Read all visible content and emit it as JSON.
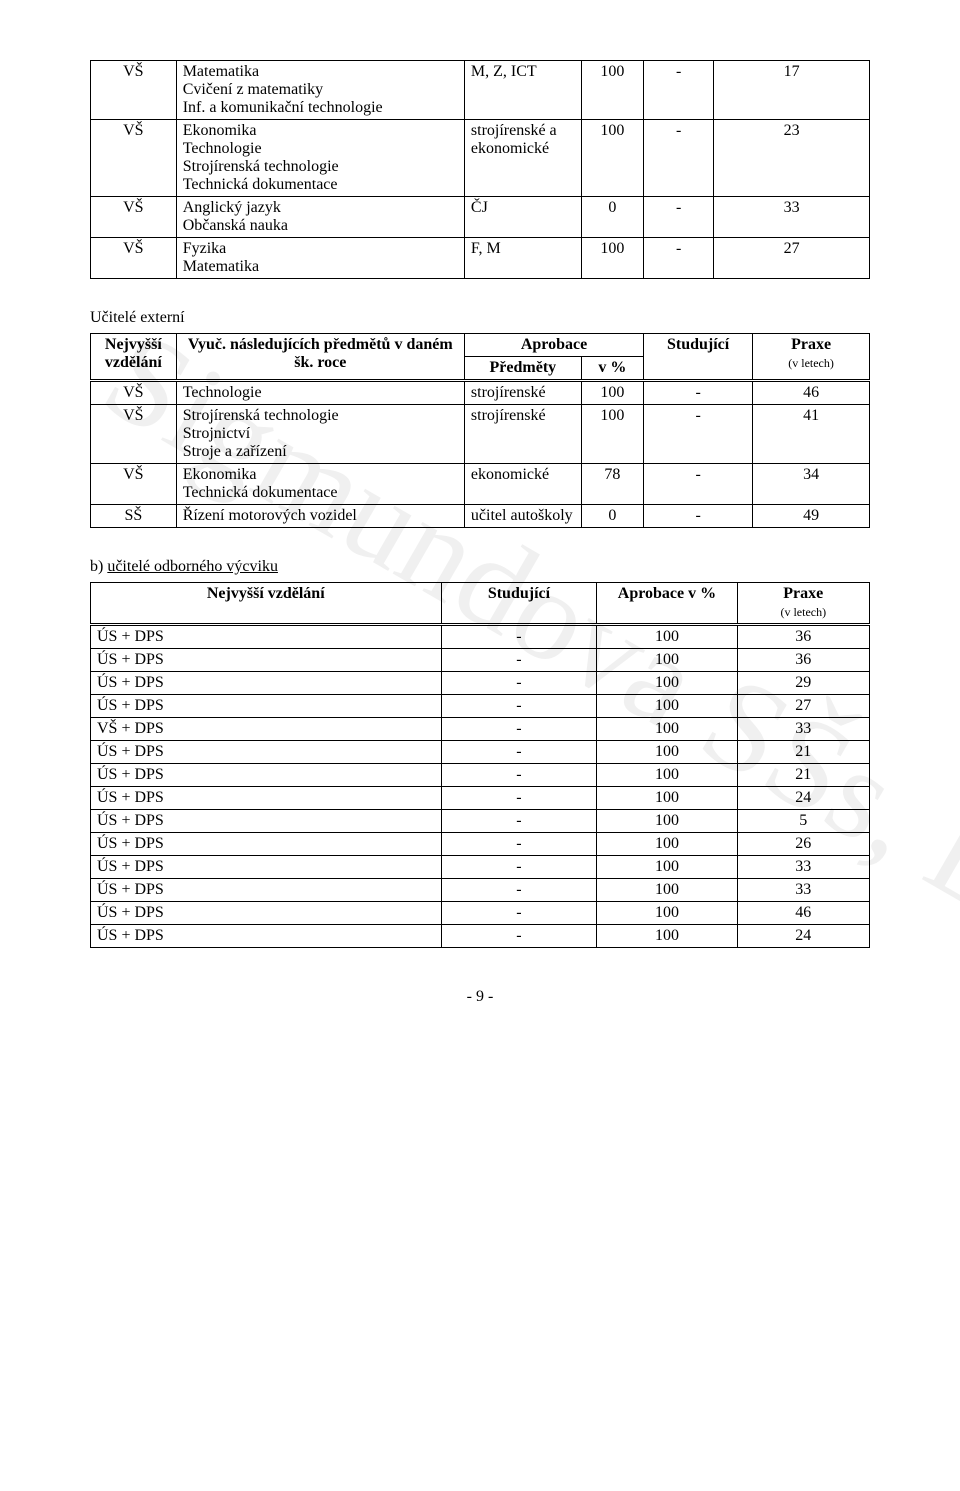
{
  "watermark": "Sigmundova SŠs, Lutín",
  "table1": {
    "rows": [
      {
        "lvl": "VŠ",
        "subj": "Matematika\nCvičení z matematiky\nInf. a komunikační technologie",
        "apr": "M, Z, ICT",
        "pct": "100",
        "stud": "-",
        "praxe": "17"
      },
      {
        "lvl": "VŠ",
        "subj": "Ekonomika\nTechnologie\nStrojírenská technologie\nTechnická dokumentace",
        "apr": "strojírenské a ekonomické",
        "pct": "100",
        "stud": "-",
        "praxe": "23"
      },
      {
        "lvl": "VŠ",
        "subj": "Anglický jazyk\nObčanská nauka",
        "apr": "ČJ",
        "pct": "0",
        "stud": "-",
        "praxe": "33"
      },
      {
        "lvl": "VŠ",
        "subj": "Fyzika\nMatematika",
        "apr": "F, M",
        "pct": "100",
        "stud": "-",
        "praxe": "27"
      }
    ]
  },
  "section_externals": "Učitelé externí",
  "table2": {
    "head": {
      "c1": "Nejvyšší vzdělání",
      "c2": "Vyuč. následujících předmětů v daném šk. roce",
      "c3a": "Aprobace",
      "c3b": "Předměty",
      "c3c": "v %",
      "c4": "Studující",
      "c5": "Praxe",
      "c5b": "(v letech)"
    },
    "rows": [
      {
        "lvl": "VŠ",
        "subj": "Technologie",
        "apr": "strojírenské",
        "pct": "100",
        "stud": "-",
        "praxe": "46"
      },
      {
        "lvl": "VŠ",
        "subj": "Strojírenská technologie\nStrojnictví\nStroje a zařízení",
        "apr": "strojírenské",
        "pct": "100",
        "stud": "-",
        "praxe": "41"
      },
      {
        "lvl": "VŠ",
        "subj": "Ekonomika\nTechnická dokumentace",
        "apr": "ekonomické",
        "pct": "78",
        "stud": "-",
        "praxe": "34"
      },
      {
        "lvl": "SŠ",
        "subj": "Řízení motorových vozidel",
        "apr": "učitel autoškoly",
        "pct": "0",
        "stud": "-",
        "praxe": "49"
      }
    ]
  },
  "section_b": "b) učitelé odborného výcviku",
  "table3": {
    "head": {
      "c1": "Nejvyšší vzdělání",
      "c2": "Studující",
      "c3": "Aprobace v %",
      "c4": "Praxe",
      "c4b": "(v letech)"
    },
    "rows": [
      {
        "lvl": "ÚS + DPS",
        "stud": "-",
        "apr": "100",
        "praxe": "36"
      },
      {
        "lvl": "ÚS + DPS",
        "stud": "-",
        "apr": "100",
        "praxe": "36"
      },
      {
        "lvl": "ÚS + DPS",
        "stud": "-",
        "apr": "100",
        "praxe": "29"
      },
      {
        "lvl": "ÚS + DPS",
        "stud": "-",
        "apr": "100",
        "praxe": "27"
      },
      {
        "lvl": "VŠ + DPS",
        "stud": "-",
        "apr": "100",
        "praxe": "33"
      },
      {
        "lvl": "ÚS + DPS",
        "stud": "-",
        "apr": "100",
        "praxe": "21"
      },
      {
        "lvl": "ÚS + DPS",
        "stud": "-",
        "apr": "100",
        "praxe": "21"
      },
      {
        "lvl": "ÚS + DPS",
        "stud": "-",
        "apr": "100",
        "praxe": "24"
      },
      {
        "lvl": "ÚS + DPS",
        "stud": "-",
        "apr": "100",
        "praxe": "5"
      },
      {
        "lvl": "ÚS + DPS",
        "stud": "-",
        "apr": "100",
        "praxe": "26"
      },
      {
        "lvl": "ÚS + DPS",
        "stud": "-",
        "apr": "100",
        "praxe": "33"
      },
      {
        "lvl": "ÚS + DPS",
        "stud": "-",
        "apr": "100",
        "praxe": "33"
      },
      {
        "lvl": "ÚS + DPS",
        "stud": "-",
        "apr": "100",
        "praxe": "46"
      },
      {
        "lvl": "ÚS + DPS",
        "stud": "-",
        "apr": "100",
        "praxe": "24"
      }
    ]
  },
  "pagenum": "- 9 -"
}
